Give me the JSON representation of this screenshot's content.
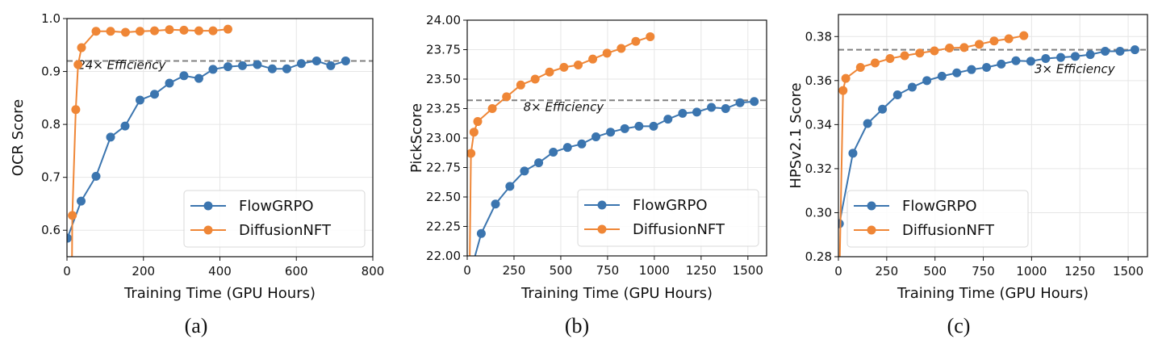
{
  "colors": {
    "FlowGRPO": "#3b75af",
    "DiffusionNFT": "#ef8636",
    "reference_line": "#808080",
    "grid": "#e6e6e6"
  },
  "chart_data": [
    {
      "type": "line",
      "caption": "(a)",
      "xlabel": "Training Time (GPU Hours)",
      "ylabel": "OCR Score",
      "xlim": [
        0,
        800
      ],
      "ylim": [
        0.55,
        1.0
      ],
      "xticks": [
        0,
        200,
        400,
        600,
        800
      ],
      "yticks": [
        0.6,
        0.7,
        0.8,
        0.9,
        1.0
      ],
      "ytick_labels": [
        "0.6",
        "0.7",
        "0.8",
        "0.9",
        "1.0"
      ],
      "grid": true,
      "legend_position": "lower-right",
      "reference_line": {
        "y": 0.92,
        "style": "dashed",
        "label": "24× Efficiency",
        "label_at": [
          28,
          0.905
        ]
      },
      "series": [
        {
          "name": "FlowGRPO",
          "x": [
            1,
            37,
            76,
            114,
            152,
            191,
            229,
            268,
            306,
            345,
            382,
            421,
            459,
            498,
            537,
            575,
            613,
            653,
            690,
            729
          ],
          "y": [
            0.585,
            0.655,
            0.702,
            0.776,
            0.797,
            0.846,
            0.857,
            0.878,
            0.892,
            0.887,
            0.904,
            0.909,
            0.911,
            0.913,
            0.905,
            0.905,
            0.915,
            0.92,
            0.911,
            0.92
          ]
        },
        {
          "name": "DiffusionNFT",
          "x": [
            12,
            14,
            23,
            29,
            38,
            76,
            114,
            153,
            191,
            229,
            268,
            306,
            345,
            382,
            421
          ],
          "y": [
            0.45,
            0.628,
            0.828,
            0.913,
            0.945,
            0.976,
            0.976,
            0.974,
            0.976,
            0.977,
            0.979,
            0.978,
            0.977,
            0.977,
            0.98
          ]
        }
      ]
    },
    {
      "type": "line",
      "caption": "(b)",
      "xlabel": "Training Time (GPU Hours)",
      "ylabel": "PickScore",
      "xlim": [
        0,
        1600
      ],
      "ylim": [
        22.0,
        24.0
      ],
      "xticks": [
        0,
        250,
        500,
        750,
        1000,
        1250,
        1500
      ],
      "yticks": [
        22.0,
        22.25,
        22.5,
        22.75,
        23.0,
        23.25,
        23.5,
        23.75,
        24.0
      ],
      "ytick_labels": [
        "22.00",
        "22.25",
        "22.50",
        "22.75",
        "23.00",
        "23.25",
        "23.50",
        "23.75",
        "24.00"
      ],
      "grid": true,
      "legend_position": "lower-right",
      "reference_line": {
        "y": 23.32,
        "style": "dashed",
        "label": "8× Efficiency",
        "label_at": [
          300,
          23.23
        ]
      },
      "series": [
        {
          "name": "FlowGRPO",
          "x": [
            0,
            75,
            151,
            228,
            306,
            382,
            460,
            536,
            612,
            688,
            766,
            842,
            918,
            996,
            1073,
            1151,
            1227,
            1305,
            1381,
            1458,
            1534
          ],
          "y": [
            21.76,
            22.19,
            22.44,
            22.59,
            22.72,
            22.79,
            22.88,
            22.92,
            22.95,
            23.01,
            23.05,
            23.08,
            23.1,
            23.1,
            23.16,
            23.21,
            23.22,
            23.26,
            23.25,
            23.3,
            23.31
          ]
        },
        {
          "name": "DiffusionNFT",
          "x": [
            10,
            20,
            36,
            56,
            134,
            210,
            286,
            363,
            440,
            517,
            593,
            671,
            747,
            823,
            901,
            978
          ],
          "y": [
            21.5,
            22.87,
            23.05,
            23.14,
            23.25,
            23.35,
            23.45,
            23.5,
            23.56,
            23.6,
            23.62,
            23.67,
            23.72,
            23.76,
            23.82,
            23.86
          ]
        }
      ]
    },
    {
      "type": "line",
      "caption": "(c)",
      "xlabel": "Training Time (GPU Hours)",
      "ylabel": "HPSv2.1 Score",
      "xlim": [
        0,
        1600
      ],
      "ylim": [
        0.28,
        0.39
      ],
      "xticks": [
        0,
        250,
        500,
        750,
        1000,
        1250,
        1500
      ],
      "yticks": [
        0.28,
        0.3,
        0.32,
        0.34,
        0.36,
        0.38
      ],
      "ytick_labels": [
        "0.28",
        "0.30",
        "0.32",
        "0.34",
        "0.36",
        "0.38"
      ],
      "grid": true,
      "legend_position": "lower-left",
      "reference_line": {
        "y": 0.374,
        "style": "dashed",
        "label": "3× Efficiency",
        "label_at": [
          1015,
          0.3635
        ]
      },
      "series": [
        {
          "name": "FlowGRPO",
          "x": [
            5,
            75,
            151,
            228,
            306,
            382,
            458,
            536,
            613,
            689,
            767,
            843,
            919,
            996,
            1073,
            1151,
            1226,
            1304,
            1381,
            1458,
            1535
          ],
          "y": [
            0.295,
            0.327,
            0.3405,
            0.347,
            0.3535,
            0.357,
            0.36,
            0.362,
            0.3635,
            0.365,
            0.366,
            0.3675,
            0.369,
            0.3688,
            0.37,
            0.3705,
            0.371,
            0.3718,
            0.3733,
            0.3733,
            0.374
          ]
        },
        {
          "name": "DiffusionNFT",
          "x": [
            5,
            24,
            38,
            114,
            190,
            267,
            343,
            421,
            497,
            575,
            651,
            729,
            806,
            882,
            960
          ],
          "y": [
            0.27,
            0.3555,
            0.361,
            0.366,
            0.368,
            0.37,
            0.3713,
            0.3725,
            0.3735,
            0.3748,
            0.375,
            0.3765,
            0.378,
            0.379,
            0.3804
          ]
        }
      ]
    }
  ]
}
